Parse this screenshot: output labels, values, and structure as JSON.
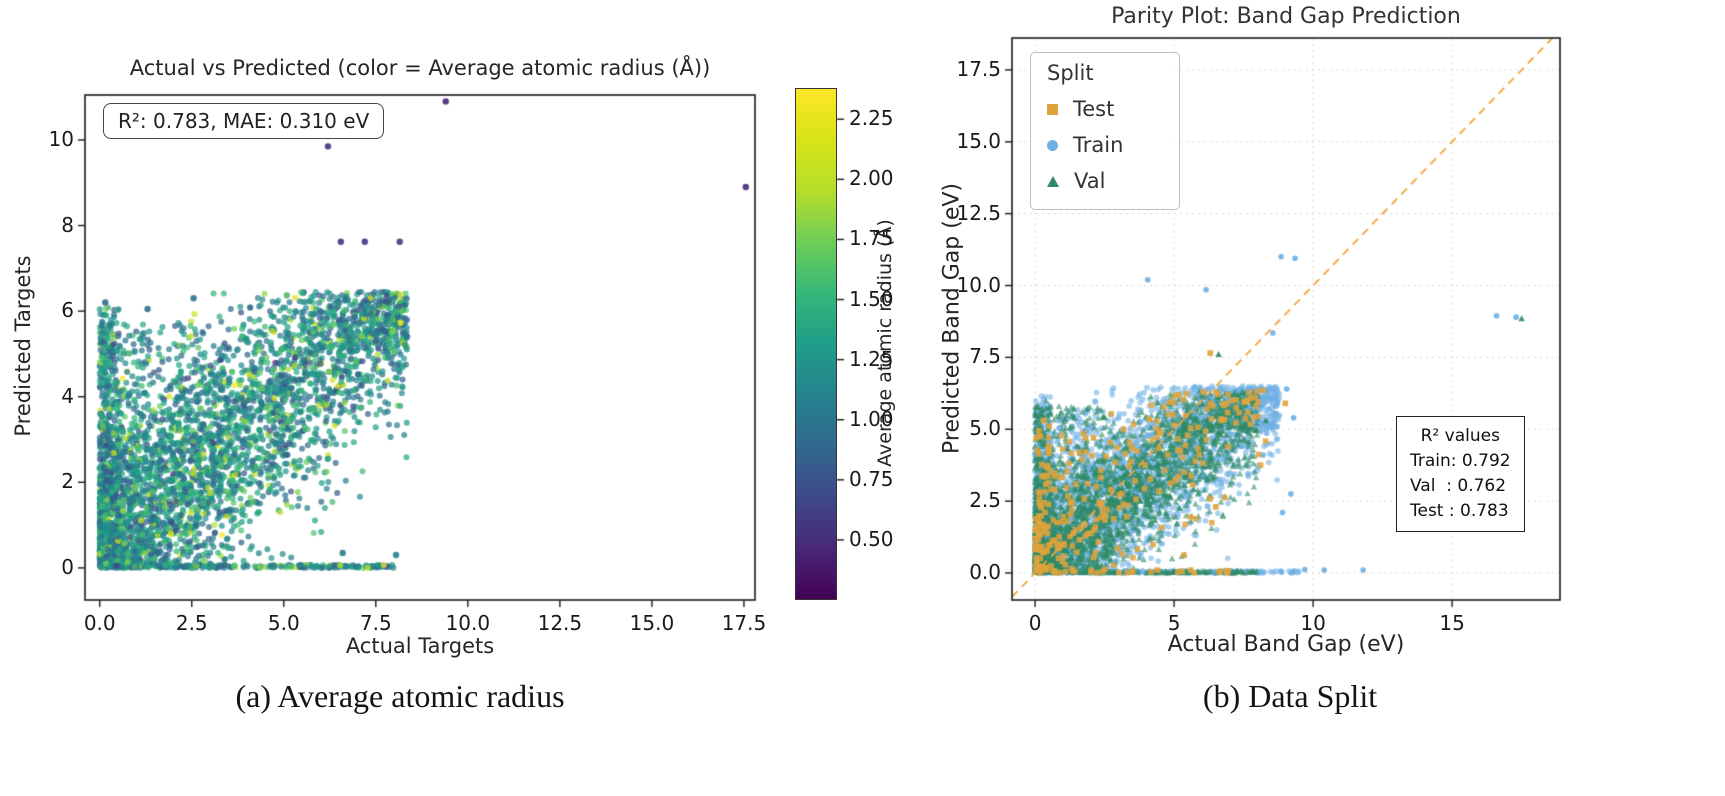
{
  "captions": {
    "a": "(a) Average atomic radius",
    "b": "(b) Data Split"
  },
  "chart_data": [
    {
      "type": "scatter",
      "title": "Actual vs Predicted (color = Average atomic radius (Å))",
      "xlabel": "Actual Targets",
      "ylabel": "Predicted Targets",
      "annotation": "R²: 0.783, MAE: 0.310 eV",
      "xlim": [
        -0.4,
        17.8
      ],
      "ylim": [
        -0.75,
        11.05
      ],
      "xtick_values": [
        0,
        2.5,
        5,
        7.5,
        10,
        12.5,
        15,
        17.5
      ],
      "xtick_labels": [
        "0.0",
        "2.5",
        "5.0",
        "7.5",
        "10.0",
        "12.5",
        "15.0",
        "17.5"
      ],
      "ytick_values": [
        0,
        2,
        4,
        6,
        8,
        10
      ],
      "ytick_labels": [
        "0",
        "2",
        "4",
        "6",
        "8",
        "10"
      ],
      "grid": false,
      "point_style": {
        "radius": 3,
        "alpha": 0.72
      },
      "cloud": {
        "n": 4300,
        "seed": 11,
        "x_scale": 8.35,
        "x_pow": 1.65,
        "band_slope": 0.74,
        "band_intercept": 0.4,
        "band_noise": 1.35,
        "y_max": 6.45,
        "zero_row_frac": 0.055,
        "zero_row_xmax": 8.1,
        "left_col_frac": 0.05,
        "left_col_ymax": 6.1
      },
      "color_mix": {
        "components": [
          {
            "w": 0.62,
            "mean": 1.05,
            "sd": 0.18
          },
          {
            "w": 0.3,
            "mean": 1.45,
            "sd": 0.15
          },
          {
            "w": 0.08,
            "mean": 1.85,
            "sd": 0.25
          }
        ],
        "clamp": [
          0.42,
          2.35
        ]
      },
      "outliers": [
        [
          6.2,
          9.85,
          0.5
        ],
        [
          9.4,
          10.9,
          0.48
        ],
        [
          17.55,
          8.9,
          0.5
        ],
        [
          6.55,
          7.62,
          0.55
        ],
        [
          7.2,
          7.62,
          0.52
        ],
        [
          8.15,
          7.62,
          0.58
        ],
        [
          8.35,
          5.4,
          0.95
        ],
        [
          2.55,
          6.3,
          1.0
        ],
        [
          6.6,
          0.35,
          1.05
        ],
        [
          8.05,
          0.3,
          1.1
        ],
        [
          0.15,
          6.2,
          0.9
        ],
        [
          1.3,
          6.05,
          1.0
        ]
      ],
      "colorbar": {
        "label": "Average atomic radius (Å)",
        "colormap": "viridis",
        "vmin": 0.25,
        "vmax": 2.38,
        "tick_values": [
          0.5,
          0.75,
          1.0,
          1.25,
          1.5,
          1.75,
          2.0,
          2.25
        ],
        "tick_labels": [
          "0.50",
          "0.75",
          "1.00",
          "1.25",
          "1.50",
          "1.75",
          "2.00",
          "2.25"
        ],
        "stops": [
          [
            0,
            "#440154"
          ],
          [
            0.1,
            "#482878"
          ],
          [
            0.2,
            "#3e4989"
          ],
          [
            0.3,
            "#31688e"
          ],
          [
            0.4,
            "#26828e"
          ],
          [
            0.5,
            "#1f9e89"
          ],
          [
            0.6,
            "#35b779"
          ],
          [
            0.7,
            "#6ece58"
          ],
          [
            0.8,
            "#b5de2b"
          ],
          [
            0.9,
            "#d8e219"
          ],
          [
            1,
            "#fde725"
          ]
        ]
      }
    },
    {
      "type": "scatter",
      "title": "Parity Plot: Band Gap Prediction",
      "xlabel": "Actual Band Gap (eV)",
      "ylabel": "Predicted Band Gap (eV)",
      "xlim": [
        -0.83,
        18.88
      ],
      "ylim": [
        -0.94,
        18.61
      ],
      "xtick_values": [
        0,
        5,
        10,
        15
      ],
      "xtick_labels": [
        "0",
        "5",
        "10",
        "15"
      ],
      "ytick_values": [
        0,
        2.5,
        5,
        7.5,
        10,
        12.5,
        15,
        17.5
      ],
      "ytick_labels": [
        "0.0",
        "2.5",
        "5.0",
        "7.5",
        "10.0",
        "12.5",
        "15.0",
        "17.5"
      ],
      "grid": true,
      "grid_color": "#d9d9d9",
      "parity_line": {
        "color": "#f3a33c",
        "dash": [
          8,
          6
        ]
      },
      "legend": {
        "title": "Split",
        "entries": [
          {
            "label": "Test",
            "marker": "square",
            "color": "#dfa33c"
          },
          {
            "label": "Train",
            "marker": "circle",
            "color": "#6fb1e5"
          },
          {
            "label": "Val",
            "marker": "triangle",
            "color": "#2f8a66"
          }
        ]
      },
      "stats_box": {
        "lines": [
          "R² values",
          "Train: 0.792",
          "Val  : 0.762",
          "Test : 0.783"
        ]
      },
      "series": [
        {
          "name": "Train",
          "color": "#6fb1e5",
          "marker": "circle",
          "alpha": 0.6,
          "cloud": {
            "n": 3300,
            "seed": 21,
            "x_scale": 8.8,
            "x_pow": 1.5,
            "band_slope": 0.72,
            "band_intercept": 0.5,
            "band_noise": 1.45,
            "y_max": 6.5,
            "zero_row_frac": 0.06,
            "zero_row_xmax": 9.5,
            "left_col_frac": 0.04,
            "left_col_ymax": 6.3
          },
          "outliers": [
            [
              8.85,
              11.0
            ],
            [
              9.35,
              10.95
            ],
            [
              4.05,
              10.2
            ],
            [
              6.15,
              9.85
            ],
            [
              8.55,
              8.35
            ],
            [
              17.3,
              8.9
            ],
            [
              16.6,
              8.95
            ],
            [
              9.05,
              6.4
            ],
            [
              9.3,
              5.4
            ],
            [
              11.8,
              0.1
            ],
            [
              10.4,
              0.1
            ],
            [
              9.7,
              0.12
            ],
            [
              8.9,
              2.1
            ],
            [
              9.2,
              2.75
            ],
            [
              8.2,
              4.1
            ]
          ]
        },
        {
          "name": "Val",
          "color": "#2f8a66",
          "marker": "triangle",
          "alpha": 0.6,
          "cloud": {
            "n": 2700,
            "seed": 33,
            "x_scale": 8.0,
            "x_pow": 1.8,
            "band_slope": 0.7,
            "band_intercept": 0.4,
            "band_noise": 1.2,
            "y_max": 6.3,
            "zero_row_frac": 0.05,
            "zero_row_xmax": 8.0,
            "left_col_frac": 0.04,
            "left_col_ymax": 6.0
          },
          "outliers": [
            [
              17.5,
              8.85
            ],
            [
              6.6,
              7.6
            ],
            [
              8.3,
              5.3
            ],
            [
              5.9,
              5.0
            ]
          ]
        },
        {
          "name": "Test",
          "color": "#dfa33c",
          "marker": "square",
          "alpha": 0.85,
          "cloud": {
            "n": 300,
            "seed": 55,
            "x_scale": 8.3,
            "x_pow": 1.6,
            "band_slope": 0.72,
            "band_intercept": 0.5,
            "band_noise": 1.5,
            "y_max": 6.4,
            "zero_row_frac": 0.06,
            "zero_row_xmax": 7.0,
            "left_col_frac": 0.03,
            "left_col_ymax": 5.6
          },
          "outliers": [
            [
              6.3,
              7.65
            ],
            [
              5.15,
              6.2
            ],
            [
              6.05,
              6.3
            ],
            [
              4.1,
              5.35
            ],
            [
              0.3,
              5.3
            ],
            [
              2.1,
              4.7
            ],
            [
              6.5,
              2.3
            ],
            [
              5.6,
              0.1
            ],
            [
              6.9,
              0.08
            ],
            [
              4.4,
              0.1
            ],
            [
              2.5,
              0.12
            ],
            [
              8.2,
              6.35
            ],
            [
              9.0,
              5.9
            ]
          ]
        }
      ]
    }
  ]
}
